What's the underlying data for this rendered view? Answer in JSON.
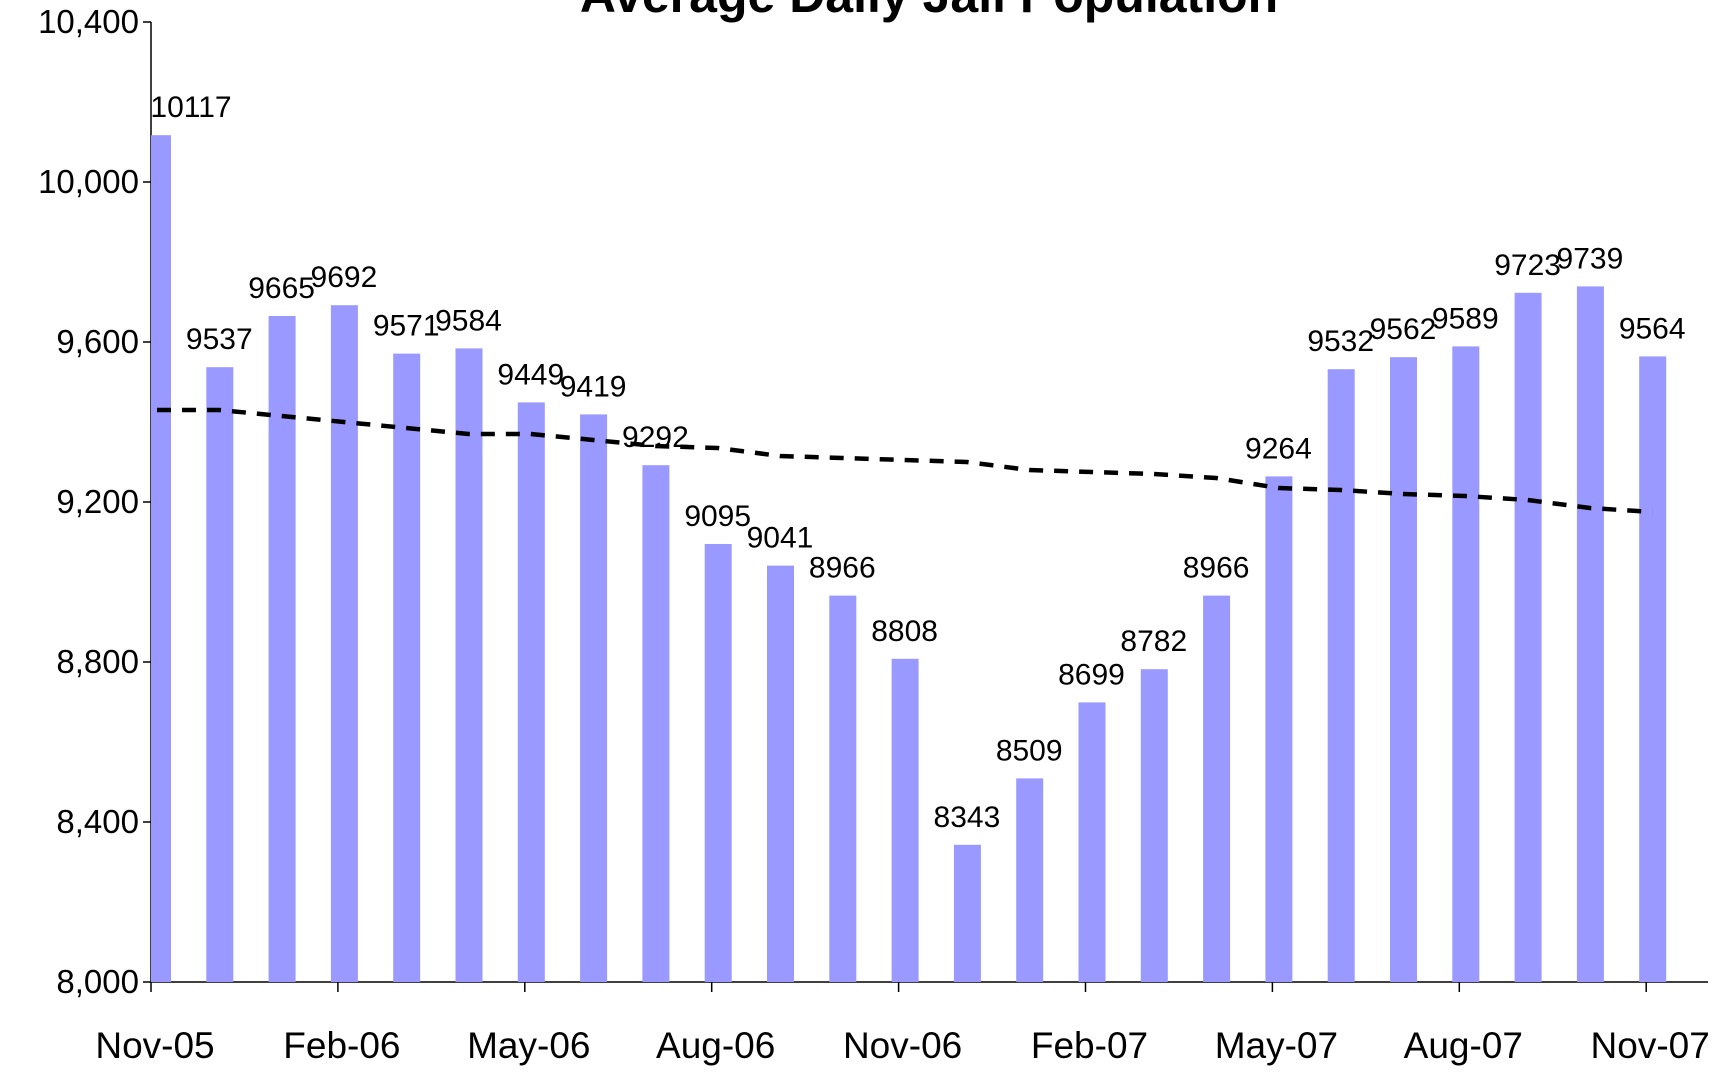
{
  "chart_data": {
    "type": "bar",
    "title": "Average Daily Jail Population",
    "categories": [
      "Nov-05",
      null,
      null,
      "Feb-06",
      null,
      null,
      "May-06",
      null,
      null,
      "Aug-06",
      null,
      null,
      "Nov-06",
      null,
      null,
      "Feb-07",
      null,
      null,
      "May-07",
      null,
      null,
      "Aug-07",
      null,
      null,
      "Nov-07"
    ],
    "values": [
      10117,
      9537,
      9665,
      9692,
      9571,
      9584,
      9449,
      9419,
      9292,
      9095,
      9041,
      8966,
      8808,
      8343,
      8509,
      8699,
      8782,
      8966,
      9264,
      9532,
      9562,
      9589,
      9723,
      9739,
      9564
    ],
    "color": "#9999ff",
    "trend": {
      "color": "#000000",
      "values": [
        9430,
        9430,
        9415,
        9400,
        9385,
        9370,
        9370,
        9355,
        9340,
        9335,
        9315,
        9310,
        9305,
        9300,
        9280,
        9275,
        9270,
        9260,
        9235,
        9230,
        9220,
        9215,
        9205,
        9185,
        9175
      ]
    },
    "ylim": [
      8000,
      10400
    ],
    "yticks": [
      {
        "value": 8000,
        "label": "8,000"
      },
      {
        "value": 8400,
        "label": "8,400"
      },
      {
        "value": 8800,
        "label": "8,800"
      },
      {
        "value": 9200,
        "label": "9,200"
      },
      {
        "value": 9600,
        "label": "9,600"
      },
      {
        "value": 10000,
        "label": "10,000"
      },
      {
        "value": 10400,
        "label": "10,400"
      }
    ],
    "grid": false
  }
}
